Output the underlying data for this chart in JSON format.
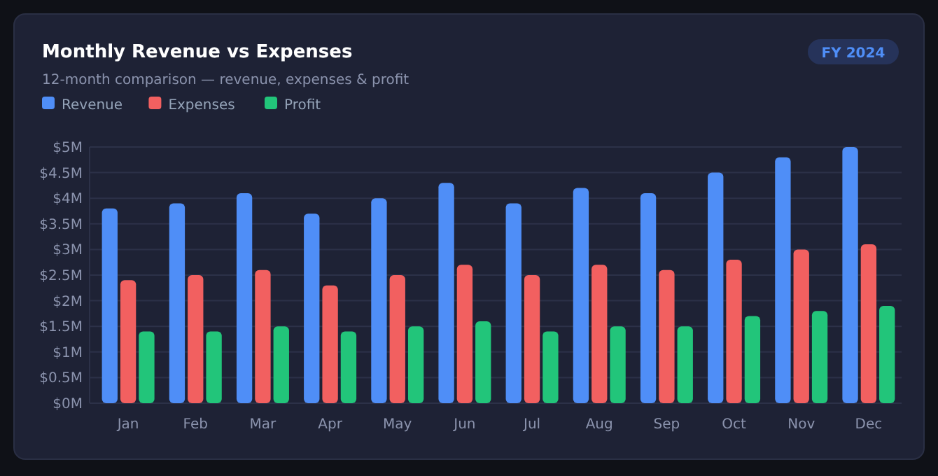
{
  "chart_data": {
    "type": "bar",
    "title": "Monthly Revenue vs Expenses",
    "subtitle": "12-month comparison — revenue, expenses & profit",
    "annotations": [
      "FY 2024"
    ],
    "categories": [
      "Jan",
      "Feb",
      "Mar",
      "Apr",
      "May",
      "Jun",
      "Jul",
      "Aug",
      "Sep",
      "Oct",
      "Nov",
      "Dec"
    ],
    "series": [
      {
        "name": "Revenue",
        "color": "#4f8ef7",
        "values": [
          3.8,
          3.9,
          4.1,
          3.7,
          4.0,
          4.3,
          3.9,
          4.2,
          4.1,
          4.5,
          4.8,
          5.0
        ]
      },
      {
        "name": "Expenses",
        "color": "#f26060",
        "values": [
          2.4,
          2.5,
          2.6,
          2.3,
          2.5,
          2.7,
          2.5,
          2.7,
          2.6,
          2.8,
          3.0,
          3.1
        ]
      },
      {
        "name": "Profit",
        "color": "#22c57a",
        "values": [
          1.4,
          1.4,
          1.5,
          1.4,
          1.5,
          1.6,
          1.4,
          1.5,
          1.5,
          1.7,
          1.8,
          1.9
        ]
      }
    ],
    "ylim": [
      0,
      5
    ],
    "yticks": [
      {
        "value": 0,
        "label": "$0M"
      },
      {
        "value": 0.5,
        "label": "$0.5M"
      },
      {
        "value": 1,
        "label": "$1M"
      },
      {
        "value": 1.5,
        "label": "$1.5M"
      },
      {
        "value": 2,
        "label": "$2M"
      },
      {
        "value": 2.5,
        "label": "$2.5M"
      },
      {
        "value": 3,
        "label": "$3M"
      },
      {
        "value": 3.5,
        "label": "$3.5M"
      },
      {
        "value": 4,
        "label": "$4M"
      },
      {
        "value": 4.5,
        "label": "$4.5M"
      },
      {
        "value": 5,
        "label": "$5M"
      }
    ],
    "grid": "y",
    "legend": "top left"
  }
}
